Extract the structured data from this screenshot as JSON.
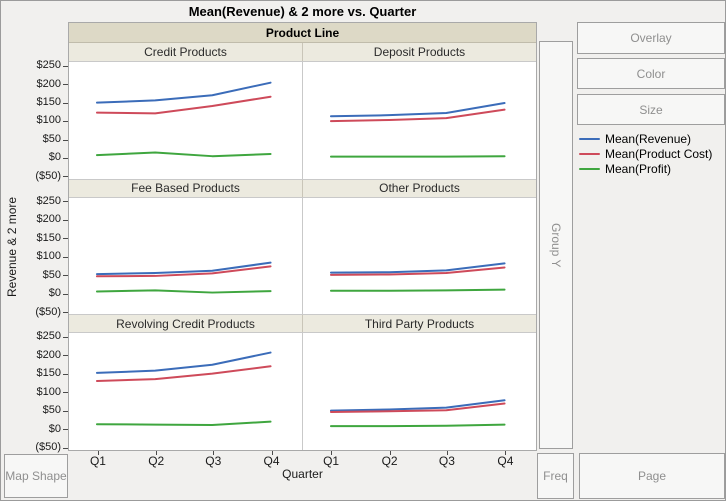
{
  "title": "Mean(Revenue) & 2 more vs. Quarter",
  "facet_band": "Product Line",
  "axes": {
    "y_label": "Revenue & 2 more",
    "x_label": "Quarter",
    "y_tick_labels": [
      "$250",
      "$200",
      "$150",
      "$100",
      "$50",
      "$0",
      "($50)"
    ],
    "x_tick_labels": [
      "Q1",
      "Q2",
      "Q3",
      "Q4"
    ]
  },
  "drop_zones": {
    "overlay": "Overlay",
    "color": "Color",
    "size": "Size",
    "group_y": "Group Y",
    "map_shape": "Map Shape",
    "freq": "Freq",
    "page": "Page"
  },
  "legend": {
    "items": [
      {
        "label": "Mean(Revenue)",
        "color": "#3B6CB9"
      },
      {
        "label": "Mean(Product Cost)",
        "color": "#CE4A5A"
      },
      {
        "label": "Mean(Profit)",
        "color": "#3FA63F"
      }
    ]
  },
  "colors": {
    "window_bg": "#F1F0EE",
    "plot_bg": "#FFFFFF",
    "facet_band_bg": "#DDD9C6",
    "facet_strip_bg": "#ECEADF",
    "panel_border": "#C9C9C9",
    "frame_border": "#A9A9A9",
    "button_text": "#8F8F8F",
    "revenue_line": "#3B6CB9",
    "product_cost_line": "#CE4A5A",
    "profit_line": "#3FA63F"
  },
  "chart_data": {
    "type": "line",
    "title": "Mean(Revenue) & 2 more vs. Quarter",
    "xlabel": "Quarter",
    "ylabel": "Revenue & 2 more",
    "facet_by": "Product Line",
    "legend_position": "right",
    "grid": false,
    "x": [
      "Q1",
      "Q2",
      "Q3",
      "Q4"
    ],
    "ylim": [
      -50,
      250
    ],
    "y_ticks": [
      250,
      200,
      150,
      100,
      50,
      0,
      -50
    ],
    "y_tick_labels": [
      "$250",
      "$200",
      "$150",
      "$100",
      "$50",
      "$0",
      "($50)"
    ],
    "series_names": [
      "Mean(Revenue)",
      "Mean(Product Cost)",
      "Mean(Profit)"
    ],
    "series_colors": [
      "#3B6CB9",
      "#CE4A5A",
      "#3FA63F"
    ],
    "panels": [
      {
        "name": "Credit Products",
        "series": [
          {
            "name": "Mean(Revenue)",
            "values": [
              147,
              153,
              167,
              201
            ]
          },
          {
            "name": "Mean(Product Cost)",
            "values": [
              120,
              118,
              138,
              163
            ]
          },
          {
            "name": "Mean(Profit)",
            "values": [
              5,
              12,
              2,
              8
            ]
          }
        ]
      },
      {
        "name": "Deposit Products",
        "series": [
          {
            "name": "Mean(Revenue)",
            "values": [
              110,
              113,
              119,
              146
            ]
          },
          {
            "name": "Mean(Product Cost)",
            "values": [
              97,
              100,
              105,
              128
            ]
          },
          {
            "name": "Mean(Profit)",
            "values": [
              1,
              1,
              1,
              2
            ]
          }
        ]
      },
      {
        "name": "Fee Based Products",
        "series": [
          {
            "name": "Mean(Revenue)",
            "values": [
              51,
              54,
              60,
              82
            ]
          },
          {
            "name": "Mean(Product Cost)",
            "values": [
              45,
              46,
              53,
              72
            ]
          },
          {
            "name": "Mean(Profit)",
            "values": [
              4,
              7,
              1,
              5
            ]
          }
        ]
      },
      {
        "name": "Other Products",
        "series": [
          {
            "name": "Mean(Revenue)",
            "values": [
              55,
              56,
              61,
              80
            ]
          },
          {
            "name": "Mean(Product Cost)",
            "values": [
              49,
              50,
              54,
              69
            ]
          },
          {
            "name": "Mean(Profit)",
            "values": [
              6,
              6,
              7,
              9
            ]
          }
        ]
      },
      {
        "name": "Revolving Credit Products",
        "series": [
          {
            "name": "Mean(Revenue)",
            "values": [
              149,
              155,
              171,
              204
            ]
          },
          {
            "name": "Mean(Product Cost)",
            "values": [
              127,
              132,
              147,
              167
            ]
          },
          {
            "name": "Mean(Profit)",
            "values": [
              10,
              9,
              8,
              17
            ]
          }
        ]
      },
      {
        "name": "Third Party Products",
        "series": [
          {
            "name": "Mean(Revenue)",
            "values": [
              47,
              50,
              55,
              75
            ]
          },
          {
            "name": "Mean(Product Cost)",
            "values": [
              43,
              45,
              48,
              66
            ]
          },
          {
            "name": "Mean(Profit)",
            "values": [
              5,
              5,
              6,
              9
            ]
          }
        ]
      }
    ]
  }
}
